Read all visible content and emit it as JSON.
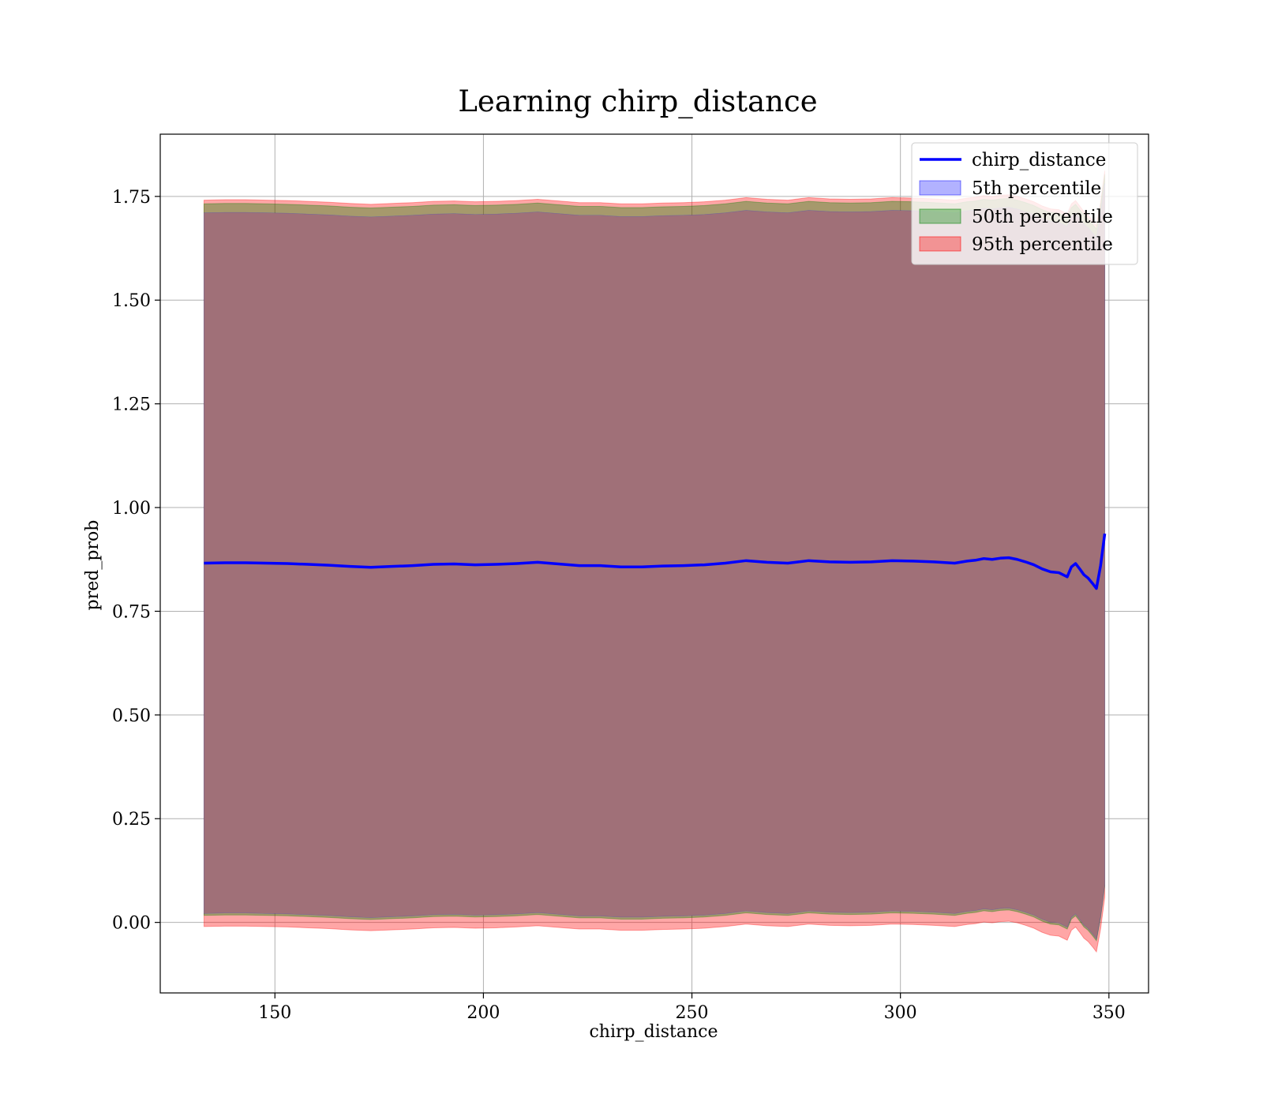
{
  "chart_data": {
    "type": "line",
    "title": "Learning chirp_distance",
    "xlabel": "chirp_distance",
    "ylabel": "pred_prob",
    "xlim": [
      122.5,
      359.5
    ],
    "ylim": [
      -0.17,
      1.9
    ],
    "xticks": [
      150,
      200,
      250,
      300,
      350
    ],
    "yticks": [
      0.0,
      0.25,
      0.5,
      0.75,
      1.0,
      1.25,
      1.5,
      1.75
    ],
    "ytick_labels": [
      "0.00",
      "0.25",
      "0.50",
      "0.75",
      "1.00",
      "1.25",
      "1.50",
      "1.75"
    ],
    "grid": true,
    "legend": {
      "placement": "top-right",
      "entries": [
        "chirp_distance",
        "5th percentile",
        "50th percentile",
        "95th percentile"
      ]
    },
    "colors": {
      "line": "#0000ff",
      "band_5th": "#0000ff",
      "band_50th": "#008000",
      "band_95th": "#ff0000",
      "band_inner": "#a07078"
    },
    "x": [
      133,
      138,
      143,
      148,
      153,
      158,
      163,
      168,
      173,
      178,
      183,
      188,
      193,
      198,
      203,
      208,
      213,
      218,
      223,
      228,
      233,
      238,
      243,
      248,
      253,
      258,
      263,
      268,
      273,
      278,
      283,
      288,
      293,
      298,
      303,
      308,
      313,
      316,
      318,
      320,
      322,
      324,
      326,
      328,
      330,
      332,
      334,
      336,
      338,
      340,
      341,
      342,
      343,
      344,
      345,
      346,
      347,
      348,
      349
    ],
    "series": [
      {
        "name": "chirp_distance",
        "values": [
          0.866,
          0.867,
          0.867,
          0.866,
          0.865,
          0.863,
          0.861,
          0.858,
          0.856,
          0.858,
          0.86,
          0.863,
          0.864,
          0.862,
          0.863,
          0.865,
          0.868,
          0.864,
          0.86,
          0.86,
          0.857,
          0.857,
          0.859,
          0.86,
          0.862,
          0.866,
          0.872,
          0.868,
          0.866,
          0.872,
          0.869,
          0.868,
          0.869,
          0.872,
          0.871,
          0.869,
          0.866,
          0.871,
          0.873,
          0.877,
          0.875,
          0.878,
          0.879,
          0.875,
          0.869,
          0.862,
          0.852,
          0.845,
          0.843,
          0.833,
          0.857,
          0.865,
          0.852,
          0.838,
          0.83,
          0.818,
          0.805,
          0.86,
          0.937
        ]
      },
      {
        "name": "5th percentile",
        "lower": [
          0.022,
          0.023,
          0.023,
          0.022,
          0.021,
          0.019,
          0.017,
          0.014,
          0.012,
          0.014,
          0.016,
          0.019,
          0.02,
          0.018,
          0.019,
          0.021,
          0.024,
          0.02,
          0.016,
          0.016,
          0.013,
          0.013,
          0.015,
          0.016,
          0.018,
          0.022,
          0.028,
          0.024,
          0.022,
          0.028,
          0.025,
          0.024,
          0.025,
          0.028,
          0.027,
          0.025,
          0.022,
          0.027,
          0.029,
          0.033,
          0.031,
          0.034,
          0.035,
          0.031,
          0.025,
          0.018,
          0.008,
          0.001,
          -0.001,
          -0.011,
          0.013,
          0.021,
          0.008,
          -0.006,
          -0.014,
          -0.026,
          -0.039,
          0.016,
          0.093
        ],
        "upper": [
          1.71,
          1.711,
          1.711,
          1.71,
          1.709,
          1.707,
          1.705,
          1.702,
          1.7,
          1.702,
          1.704,
          1.707,
          1.708,
          1.706,
          1.707,
          1.709,
          1.712,
          1.708,
          1.704,
          1.704,
          1.701,
          1.701,
          1.703,
          1.704,
          1.706,
          1.71,
          1.716,
          1.712,
          1.71,
          1.716,
          1.713,
          1.712,
          1.713,
          1.716,
          1.715,
          1.713,
          1.71,
          1.715,
          1.717,
          1.721,
          1.719,
          1.722,
          1.723,
          1.719,
          1.713,
          1.706,
          1.696,
          1.689,
          1.687,
          1.677,
          1.701,
          1.709,
          1.696,
          1.682,
          1.674,
          1.662,
          1.649,
          1.704,
          1.781
        ]
      },
      {
        "name": "50th percentile",
        "lower": [
          0.017,
          0.018,
          0.018,
          0.017,
          0.016,
          0.014,
          0.012,
          0.009,
          0.007,
          0.009,
          0.011,
          0.014,
          0.015,
          0.013,
          0.014,
          0.016,
          0.019,
          0.015,
          0.011,
          0.011,
          0.008,
          0.008,
          0.01,
          0.011,
          0.013,
          0.017,
          0.023,
          0.019,
          0.017,
          0.023,
          0.02,
          0.019,
          0.02,
          0.023,
          0.022,
          0.02,
          0.017,
          0.022,
          0.024,
          0.028,
          0.026,
          0.029,
          0.03,
          0.026,
          0.02,
          0.013,
          0.003,
          -0.004,
          -0.006,
          -0.016,
          0.008,
          0.016,
          0.003,
          -0.011,
          -0.019,
          -0.031,
          -0.044,
          0.011,
          0.088
        ],
        "upper": [
          1.732,
          1.733,
          1.733,
          1.732,
          1.731,
          1.729,
          1.727,
          1.724,
          1.722,
          1.724,
          1.726,
          1.729,
          1.73,
          1.728,
          1.729,
          1.731,
          1.734,
          1.73,
          1.726,
          1.726,
          1.723,
          1.723,
          1.725,
          1.726,
          1.728,
          1.732,
          1.738,
          1.734,
          1.732,
          1.738,
          1.735,
          1.734,
          1.735,
          1.738,
          1.737,
          1.735,
          1.732,
          1.737,
          1.739,
          1.743,
          1.741,
          1.744,
          1.745,
          1.741,
          1.735,
          1.728,
          1.718,
          1.711,
          1.709,
          1.699,
          1.723,
          1.731,
          1.718,
          1.704,
          1.696,
          1.684,
          1.671,
          1.726,
          1.803
        ]
      },
      {
        "name": "95th percentile",
        "lower": [
          -0.01,
          -0.009,
          -0.009,
          -0.01,
          -0.011,
          -0.013,
          -0.015,
          -0.018,
          -0.02,
          -0.018,
          -0.016,
          -0.013,
          -0.012,
          -0.014,
          -0.013,
          -0.011,
          -0.008,
          -0.012,
          -0.016,
          -0.016,
          -0.019,
          -0.019,
          -0.017,
          -0.016,
          -0.014,
          -0.01,
          -0.004,
          -0.008,
          -0.01,
          -0.004,
          -0.007,
          -0.008,
          -0.007,
          -0.004,
          -0.005,
          -0.007,
          -0.01,
          -0.005,
          -0.003,
          0.001,
          -0.001,
          0.002,
          0.003,
          -0.001,
          -0.007,
          -0.014,
          -0.024,
          -0.031,
          -0.033,
          -0.043,
          -0.019,
          -0.011,
          -0.024,
          -0.038,
          -0.046,
          -0.058,
          -0.071,
          -0.016,
          0.061
        ],
        "upper": [
          1.741,
          1.742,
          1.742,
          1.741,
          1.74,
          1.738,
          1.736,
          1.733,
          1.731,
          1.733,
          1.735,
          1.738,
          1.739,
          1.737,
          1.738,
          1.74,
          1.743,
          1.739,
          1.735,
          1.735,
          1.732,
          1.732,
          1.734,
          1.735,
          1.737,
          1.741,
          1.747,
          1.743,
          1.741,
          1.747,
          1.744,
          1.743,
          1.744,
          1.747,
          1.746,
          1.744,
          1.741,
          1.746,
          1.748,
          1.752,
          1.75,
          1.753,
          1.754,
          1.75,
          1.744,
          1.737,
          1.727,
          1.72,
          1.718,
          1.708,
          1.732,
          1.74,
          1.727,
          1.713,
          1.705,
          1.693,
          1.68,
          1.735,
          1.812
        ]
      }
    ]
  }
}
